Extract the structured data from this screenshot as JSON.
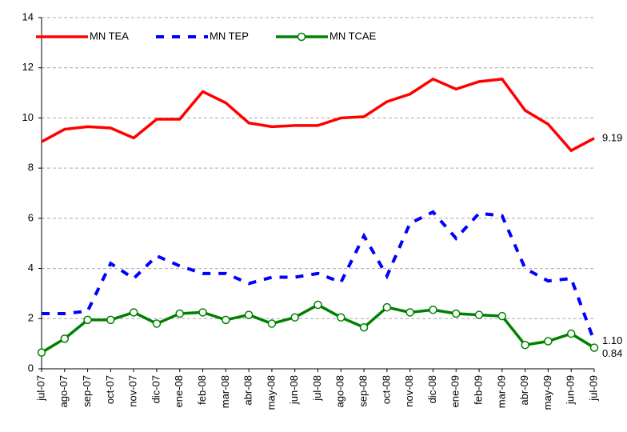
{
  "chart_data": {
    "type": "line",
    "categories": [
      "jul-07",
      "ago-07",
      "sep-07",
      "oct-07",
      "nov-07",
      "dic-07",
      "ene-08",
      "feb-08",
      "mar-08",
      "abr-08",
      "may-08",
      "jun-08",
      "jul-08",
      "ago-08",
      "sep-08",
      "oct-08",
      "nov-08",
      "dic-08",
      "ene-09",
      "feb-09",
      "mar-09",
      "abr-09",
      "may-09",
      "jun-09",
      "jul-09"
    ],
    "series": [
      {
        "name": "MN TEA",
        "color": "#ff0000",
        "dash": "solid",
        "marker": false,
        "values": [
          9.05,
          9.55,
          9.65,
          9.6,
          9.2,
          9.95,
          9.95,
          11.05,
          10.6,
          9.8,
          9.65,
          9.7,
          9.7,
          10.0,
          10.05,
          10.65,
          10.95,
          11.55,
          11.15,
          11.45,
          11.55,
          10.3,
          9.75,
          8.7,
          9.19
        ]
      },
      {
        "name": "MN TEP",
        "color": "#0000ff",
        "dash": "dashed",
        "marker": false,
        "values": [
          2.2,
          2.2,
          2.3,
          4.2,
          3.6,
          4.5,
          4.1,
          3.8,
          3.8,
          3.4,
          3.65,
          3.65,
          3.8,
          3.45,
          5.3,
          3.7,
          5.8,
          6.25,
          5.2,
          6.2,
          6.1,
          4.0,
          3.5,
          3.6,
          1.1
        ],
        "value_labels": [
          null,
          null,
          null,
          null,
          null,
          null,
          null,
          null,
          null,
          null,
          null,
          null,
          null,
          null,
          null,
          null,
          null,
          null,
          null,
          null,
          null,
          null,
          null,
          null,
          "1.10"
        ]
      },
      {
        "name": "MN TCAE",
        "color": "#008000",
        "dash": "solid",
        "marker": true,
        "values": [
          0.65,
          1.2,
          1.95,
          1.95,
          2.25,
          1.8,
          2.2,
          2.25,
          1.95,
          2.15,
          1.8,
          2.05,
          2.55,
          2.05,
          1.65,
          2.45,
          2.25,
          2.35,
          2.2,
          2.15,
          2.1,
          0.95,
          1.1,
          1.4,
          0.84
        ]
      }
    ],
    "ylim": [
      0,
      14
    ],
    "yticks": [
      0,
      2,
      4,
      6,
      8,
      10,
      12,
      14
    ],
    "grid": true,
    "legend": "top-left"
  }
}
